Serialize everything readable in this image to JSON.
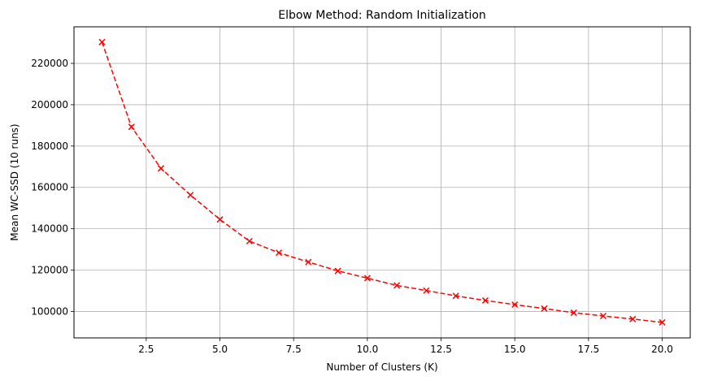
{
  "chart_data": {
    "type": "line",
    "title": "Elbow Method: Random Initialization",
    "xlabel": "Number of Clusters (K)",
    "ylabel": "Mean WC-SSD (10 runs)",
    "xlim": [
      0.05,
      20.95
    ],
    "ylim": [
      87200,
      237700
    ],
    "xticks": [
      2.5,
      5.0,
      7.5,
      10.0,
      12.5,
      15.0,
      17.5,
      20.0
    ],
    "xtick_labels": [
      "2.5",
      "5.0",
      "7.5",
      "10.0",
      "12.5",
      "15.0",
      "17.5",
      "20.0"
    ],
    "yticks": [
      100000,
      120000,
      140000,
      160000,
      180000,
      200000,
      220000
    ],
    "ytick_labels": [
      "100000",
      "120000",
      "140000",
      "160000",
      "180000",
      "200000",
      "220000"
    ],
    "grid": true,
    "series": [
      {
        "color": "#ff0000",
        "line_style": "dashed",
        "marker": "x",
        "x": [
          1,
          2,
          3,
          4,
          5,
          6,
          7,
          8,
          9,
          10,
          11,
          12,
          13,
          14,
          15,
          16,
          17,
          18,
          19,
          20
        ],
        "y": [
          230300,
          189300,
          169200,
          156300,
          144500,
          134000,
          128400,
          123900,
          119600,
          116100,
          112600,
          110100,
          107500,
          105300,
          103300,
          101400,
          99400,
          97800,
          96300,
          94700
        ]
      }
    ]
  }
}
